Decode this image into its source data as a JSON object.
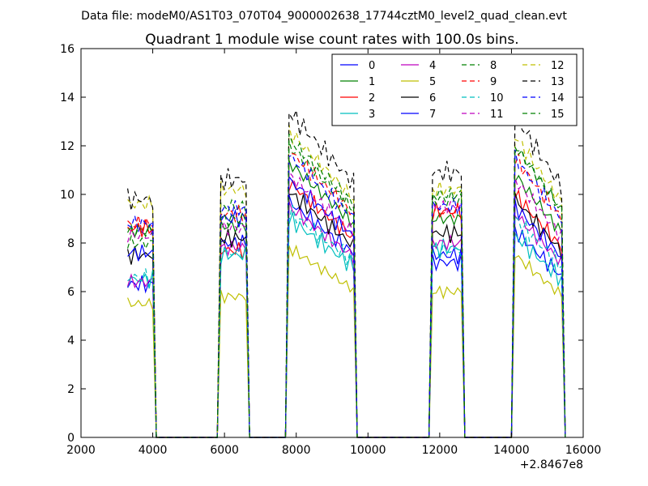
{
  "chart_data": {
    "type": "line",
    "suptitle": "Data file: modeM0/AS1T03_070T04_9000002638_17744cztM0_level2_quad_clean.evt",
    "title": "Quadrant 1 module wise count rates with 100.0s bins.",
    "xlabel": "",
    "ylabel": "",
    "x_offset_label": "+2.8467e8",
    "xlim": [
      2000,
      16000
    ],
    "ylim": [
      0,
      16
    ],
    "xticks": [
      2000,
      4000,
      6000,
      8000,
      10000,
      12000,
      14000,
      16000
    ],
    "yticks": [
      0,
      2,
      4,
      6,
      8,
      10,
      12,
      14,
      16
    ],
    "grid": false,
    "legend_position": "top-right",
    "segments": [
      {
        "start": 3300,
        "n": 8
      },
      {
        "start": 5900,
        "n": 8
      },
      {
        "start": 7800,
        "n": 19
      },
      {
        "start": 11800,
        "n": 9
      },
      {
        "start": 14100,
        "n": 14
      }
    ],
    "zero_ranges": [
      [
        3900,
        5800
      ],
      [
        6600,
        7700
      ],
      [
        9700,
        11700
      ],
      [
        12800,
        14000
      ]
    ],
    "series": [
      {
        "name": "0",
        "color": "#0000ff",
        "style": "solid",
        "seg_levels": [
          6.3,
          8.0,
          9.7,
          7.2,
          8.5
        ],
        "jitter": 0.25
      },
      {
        "name": "1",
        "color": "#008000",
        "style": "solid",
        "seg_levels": [
          8.5,
          8.7,
          11.3,
          9.0,
          10.8
        ],
        "jitter": 0.25
      },
      {
        "name": "2",
        "color": "#ff0000",
        "style": "solid",
        "seg_levels": [
          8.6,
          7.7,
          10.5,
          9.3,
          10.0
        ],
        "jitter": 0.25
      },
      {
        "name": "3",
        "color": "#00bfbf",
        "style": "solid",
        "seg_levels": [
          6.5,
          7.5,
          9.0,
          7.8,
          8.3
        ],
        "jitter": 0.25
      },
      {
        "name": "4",
        "color": "#bf00bf",
        "style": "solid",
        "seg_levels": [
          6.4,
          7.8,
          9.5,
          8.0,
          9.2
        ],
        "jitter": 0.25
      },
      {
        "name": "5",
        "color": "#bfbf00",
        "style": "solid",
        "seg_levels": [
          5.5,
          5.8,
          7.8,
          6.0,
          7.5
        ],
        "jitter": 0.2
      },
      {
        "name": "6",
        "color": "#000000",
        "style": "solid",
        "seg_levels": [
          7.5,
          8.2,
          10.1,
          8.4,
          9.8
        ],
        "jitter": 0.25
      },
      {
        "name": "7",
        "color": "#0000ff",
        "style": "solid",
        "seg_levels": [
          7.6,
          9.0,
          10.6,
          7.5,
          9.5
        ],
        "jitter": 0.25
      },
      {
        "name": "8",
        "color": "#008000",
        "style": "dashed",
        "seg_levels": [
          8.5,
          9.5,
          12.0,
          10.0,
          12.0
        ],
        "jitter": 0.25
      },
      {
        "name": "9",
        "color": "#ff0000",
        "style": "dashed",
        "seg_levels": [
          8.8,
          9.2,
          11.8,
          9.3,
          11.5
        ],
        "jitter": 0.25
      },
      {
        "name": "10",
        "color": "#00bfbf",
        "style": "dashed",
        "seg_levels": [
          6.6,
          7.6,
          9.3,
          7.7,
          9.0
        ],
        "jitter": 0.25
      },
      {
        "name": "11",
        "color": "#bf00bf",
        "style": "dashed",
        "seg_levels": [
          8.3,
          8.6,
          10.8,
          9.5,
          10.6
        ],
        "jitter": 0.25
      },
      {
        "name": "12",
        "color": "#bfbf00",
        "style": "dashed",
        "seg_levels": [
          9.6,
          10.2,
          12.6,
          10.2,
          12.4
        ],
        "jitter": 0.25
      },
      {
        "name": "13",
        "color": "#000000",
        "style": "dashed",
        "seg_levels": [
          9.8,
          10.6,
          13.4,
          10.9,
          13.2
        ],
        "jitter": 0.3
      },
      {
        "name": "14",
        "color": "#0000ff",
        "style": "dashed",
        "seg_levels": [
          8.8,
          9.4,
          11.6,
          9.5,
          11.5
        ],
        "jitter": 0.25
      },
      {
        "name": "15",
        "color": "#008000",
        "style": "dashed",
        "seg_levels": [
          8.0,
          9.0,
          12.3,
          9.8,
          12.0
        ],
        "jitter": 0.25
      }
    ]
  }
}
